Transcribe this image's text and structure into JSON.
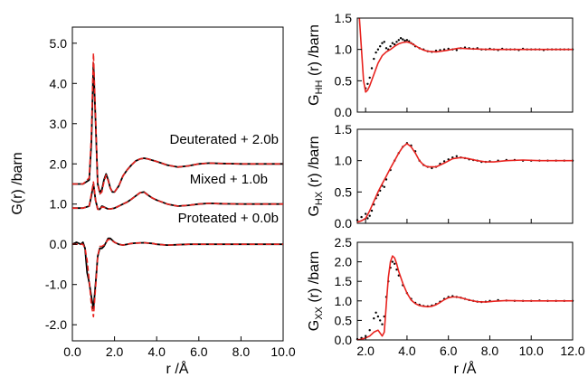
{
  "chart_data": [
    {
      "id": "left",
      "type": "line",
      "xlabel": "r /Å",
      "ylabel": "G(r) /barn",
      "xlim": [
        0,
        10
      ],
      "ylim": [
        -2.4,
        5.4
      ],
      "xticks": [
        "0.0",
        "2.0",
        "4.0",
        "6.0",
        "8.0",
        "10.0"
      ],
      "yticks": [
        "-2.0",
        "-1.0",
        "0.0",
        "1.0",
        "2.0",
        "3.0",
        "4.0",
        "5.0"
      ],
      "annotations": [
        {
          "text": "Deuterated + 2.0b",
          "x": 6.0,
          "y": 2.4
        },
        {
          "text": "Mixed + 1.0b",
          "x": 6.5,
          "y": 1.4
        },
        {
          "text": "Proteated + 0.0b",
          "x": 6.0,
          "y": 0.5
        }
      ],
      "colors": {
        "data": "#000000",
        "fit": "#e8231f"
      },
      "series": [
        {
          "group": "deuterated",
          "style": "data",
          "x": [
            0.0,
            0.5,
            0.8,
            0.9,
            1.0,
            1.1,
            1.2,
            1.3,
            1.4,
            1.5,
            1.6,
            1.7,
            1.8,
            1.9,
            2.0,
            2.2,
            2.4,
            2.6,
            2.8,
            3.0,
            3.2,
            3.4,
            3.6,
            3.8,
            4.0,
            4.5,
            5.0,
            5.5,
            6.0,
            6.5,
            7.0,
            8.0,
            9.0,
            10.0
          ],
          "y": [
            1.5,
            1.5,
            1.6,
            2.5,
            4.5,
            3.1,
            1.5,
            1.3,
            1.35,
            1.6,
            1.75,
            1.6,
            1.4,
            1.3,
            1.3,
            1.45,
            1.7,
            1.85,
            1.97,
            2.07,
            2.12,
            2.14,
            2.12,
            2.09,
            2.06,
            1.97,
            1.92,
            1.95,
            2.0,
            2.02,
            2.01,
            2.0,
            2.0,
            2.0
          ]
        },
        {
          "group": "deuterated",
          "style": "fit",
          "x": [
            0.0,
            0.5,
            0.8,
            0.9,
            1.0,
            1.1,
            1.2,
            1.3,
            1.4,
            1.5,
            1.6,
            1.7,
            1.8,
            1.9,
            2.0,
            2.2,
            2.4,
            2.6,
            2.8,
            3.0,
            3.2,
            3.4,
            3.6,
            3.8,
            4.0,
            4.5,
            5.0,
            5.5,
            6.0,
            6.5,
            7.0,
            8.0,
            9.0,
            10.0
          ],
          "y": [
            1.5,
            1.5,
            1.65,
            2.7,
            4.75,
            3.2,
            1.5,
            1.25,
            1.3,
            1.55,
            1.72,
            1.58,
            1.4,
            1.3,
            1.3,
            1.45,
            1.7,
            1.85,
            1.97,
            2.07,
            2.12,
            2.14,
            2.12,
            2.09,
            2.06,
            1.97,
            1.92,
            1.95,
            2.0,
            2.02,
            2.01,
            2.0,
            2.0,
            2.0
          ]
        },
        {
          "group": "mixed",
          "style": "data",
          "x": [
            0.0,
            0.5,
            0.8,
            0.9,
            1.0,
            1.1,
            1.2,
            1.3,
            1.4,
            1.5,
            1.6,
            1.7,
            1.8,
            2.0,
            2.2,
            2.4,
            2.6,
            2.8,
            3.0,
            3.2,
            3.4,
            3.6,
            3.8,
            4.0,
            4.5,
            5.0,
            5.5,
            6.0,
            6.5,
            7.0,
            8.0,
            9.0,
            10.0
          ],
          "y": [
            0.9,
            0.9,
            0.95,
            1.2,
            1.5,
            1.1,
            0.88,
            0.87,
            0.95,
            0.93,
            0.9,
            0.88,
            0.88,
            0.9,
            0.95,
            1.0,
            1.05,
            1.12,
            1.2,
            1.28,
            1.3,
            1.22,
            1.15,
            1.1,
            1.0,
            0.95,
            0.97,
            1.0,
            1.02,
            1.01,
            1.0,
            1.0,
            1.0
          ]
        },
        {
          "group": "mixed",
          "style": "fit",
          "x": [
            0.0,
            0.5,
            0.8,
            0.9,
            1.0,
            1.1,
            1.2,
            1.3,
            1.4,
            1.5,
            1.6,
            1.7,
            1.8,
            2.0,
            2.2,
            2.4,
            2.6,
            2.8,
            3.0,
            3.2,
            3.4,
            3.6,
            3.8,
            4.0,
            4.5,
            5.0,
            5.5,
            6.0,
            6.5,
            7.0,
            8.0,
            9.0,
            10.0
          ],
          "y": [
            0.9,
            0.9,
            0.95,
            1.25,
            1.55,
            1.1,
            0.87,
            0.86,
            0.93,
            0.92,
            0.9,
            0.88,
            0.88,
            0.9,
            0.95,
            1.0,
            1.05,
            1.12,
            1.2,
            1.28,
            1.3,
            1.22,
            1.15,
            1.1,
            1.0,
            0.95,
            0.97,
            1.0,
            1.02,
            1.01,
            1.0,
            1.0,
            1.0
          ]
        },
        {
          "group": "proteated",
          "style": "data",
          "x": [
            0.0,
            0.2,
            0.4,
            0.5,
            0.6,
            0.7,
            0.8,
            0.9,
            1.0,
            1.1,
            1.2,
            1.3,
            1.4,
            1.5,
            1.6,
            1.7,
            1.8,
            2.0,
            2.2,
            2.4,
            2.6,
            2.8,
            3.0,
            3.4,
            3.8,
            4.0,
            4.5,
            5.0,
            5.5,
            6.0,
            7.0,
            8.0,
            9.0,
            10.0
          ],
          "y": [
            0.0,
            0.05,
            0.0,
            0.05,
            -0.1,
            -0.7,
            -0.95,
            -1.3,
            -1.6,
            -1.0,
            -0.3,
            -0.1,
            -0.1,
            -0.05,
            0.05,
            0.15,
            0.15,
            0.05,
            0.0,
            -0.02,
            0.0,
            0.02,
            0.03,
            0.04,
            0.02,
            0.0,
            -0.02,
            -0.01,
            0.0,
            0.0,
            0.0,
            0.0,
            0.0,
            0.0
          ]
        },
        {
          "group": "proteated",
          "style": "fit",
          "x": [
            0.0,
            0.2,
            0.4,
            0.5,
            0.6,
            0.7,
            0.8,
            0.9,
            1.0,
            1.1,
            1.2,
            1.3,
            1.4,
            1.5,
            1.6,
            1.7,
            1.8,
            2.0,
            2.2,
            2.4,
            2.6,
            2.8,
            3.0,
            3.4,
            3.8,
            4.0,
            4.5,
            5.0,
            5.5,
            6.0,
            7.0,
            8.0,
            9.0,
            10.0
          ],
          "y": [
            0.0,
            0.0,
            0.0,
            0.0,
            -0.1,
            -0.4,
            -0.9,
            -1.5,
            -1.8,
            -1.1,
            -0.3,
            -0.05,
            -0.05,
            -0.02,
            0.05,
            0.12,
            0.12,
            0.05,
            0.0,
            -0.02,
            0.0,
            0.02,
            0.03,
            0.04,
            0.02,
            0.0,
            -0.02,
            -0.01,
            0.0,
            0.0,
            0.0,
            0.0,
            0.0,
            0.0
          ]
        }
      ]
    },
    {
      "id": "hh",
      "type": "line",
      "ylabel": "G_HH (r)  /barn",
      "xlim": [
        1.6,
        12.0
      ],
      "ylim": [
        0.0,
        1.5
      ],
      "yticks": [
        "0.0",
        "0.5",
        "1.0",
        "1.5"
      ],
      "series": [
        {
          "style": "data",
          "x": [
            2.0,
            2.1,
            2.2,
            2.3,
            2.4,
            2.5,
            2.6,
            2.7,
            2.8,
            2.9,
            3.0,
            3.1,
            3.2,
            3.3,
            3.4,
            3.5,
            3.6,
            3.7,
            3.8,
            3.9,
            4.0,
            4.1,
            4.2,
            4.3,
            4.4,
            4.6,
            4.8,
            5.0,
            5.2,
            5.4,
            5.6,
            5.8,
            6.0,
            6.2,
            6.4,
            6.6,
            6.8,
            7.0,
            7.2,
            7.4,
            7.6,
            7.8,
            8.0,
            8.2,
            8.4,
            8.6,
            8.8,
            9.0,
            9.2,
            9.4,
            9.6,
            9.8,
            10.0,
            10.2,
            10.4,
            10.6,
            10.8,
            11.0,
            11.2,
            11.4,
            11.6,
            11.8,
            12.0
          ],
          "y": [
            0.38,
            0.45,
            0.55,
            0.7,
            0.85,
            0.95,
            1.0,
            1.05,
            1.1,
            1.12,
            1.02,
            1.0,
            1.05,
            1.1,
            1.08,
            1.12,
            1.15,
            1.18,
            1.16,
            1.14,
            1.15,
            1.13,
            1.1,
            1.08,
            1.05,
            1.02,
            1.0,
            0.97,
            0.96,
            0.98,
            0.99,
            1.0,
            1.01,
            1.0,
            0.99,
            1.02,
            1.03,
            1.02,
            1.01,
            1.02,
            1.0,
            1.0,
            1.01,
            1.0,
            0.99,
            1.01,
            1.0,
            1.0,
            1.0,
            0.99,
            1.01,
            1.0,
            1.0,
            1.0,
            1.0,
            0.99,
            1.0,
            1.0,
            1.0,
            1.0,
            1.0,
            1.0,
            1.0
          ]
        },
        {
          "style": "fit",
          "x": [
            1.7,
            1.8,
            1.9,
            2.0,
            2.1,
            2.2,
            2.4,
            2.6,
            2.8,
            3.0,
            3.2,
            3.4,
            3.6,
            3.8,
            4.0,
            4.2,
            4.4,
            4.6,
            4.8,
            5.0,
            5.4,
            6.0,
            6.5,
            7.0,
            8.0,
            9.0,
            10.0,
            11.0,
            12.0
          ],
          "y": [
            1.5,
            1.0,
            0.5,
            0.32,
            0.35,
            0.42,
            0.6,
            0.78,
            0.9,
            0.96,
            1.0,
            1.05,
            1.09,
            1.11,
            1.12,
            1.1,
            1.06,
            1.02,
            0.99,
            0.97,
            0.96,
            0.99,
            1.02,
            1.01,
            1.0,
            1.0,
            1.0,
            1.0,
            1.0
          ]
        }
      ]
    },
    {
      "id": "hx",
      "type": "line",
      "ylabel": "G_HX (r)  /barn",
      "xlim": [
        1.6,
        12.0
      ],
      "ylim": [
        0.0,
        1.5
      ],
      "yticks": [
        "0.0",
        "0.5",
        "1.0",
        "1.5"
      ],
      "series": [
        {
          "style": "data",
          "x": [
            1.6,
            1.8,
            2.0,
            2.1,
            2.2,
            2.3,
            2.4,
            2.5,
            2.6,
            2.7,
            2.8,
            2.9,
            3.0,
            3.2,
            3.4,
            3.6,
            3.8,
            4.0,
            4.2,
            4.4,
            4.6,
            4.8,
            5.0,
            5.2,
            5.4,
            5.6,
            5.8,
            6.0,
            6.2,
            6.4,
            6.6,
            6.8,
            7.0,
            7.2,
            7.4,
            7.6,
            7.8,
            8.0,
            8.4,
            8.8,
            9.2,
            9.6,
            10.0,
            10.4,
            10.8,
            11.2,
            11.6,
            12.0
          ],
          "y": [
            0.05,
            0.1,
            0.15,
            0.08,
            0.12,
            0.2,
            0.3,
            0.4,
            0.45,
            0.52,
            0.6,
            0.58,
            0.7,
            0.85,
            1.0,
            1.12,
            1.22,
            1.28,
            1.24,
            1.15,
            1.0,
            0.93,
            0.9,
            0.88,
            0.9,
            0.95,
            0.99,
            1.02,
            1.05,
            1.07,
            1.05,
            1.04,
            1.02,
            1.01,
            1.0,
            0.98,
            0.98,
            0.99,
            1.0,
            1.01,
            1.01,
            1.0,
            1.0,
            1.0,
            1.0,
            1.0,
            1.0,
            1.0
          ]
        },
        {
          "style": "fit",
          "x": [
            1.6,
            1.8,
            2.0,
            2.2,
            2.4,
            2.6,
            2.8,
            3.0,
            3.2,
            3.4,
            3.6,
            3.8,
            4.0,
            4.2,
            4.4,
            4.6,
            4.8,
            5.0,
            5.4,
            5.8,
            6.2,
            6.6,
            7.0,
            7.4,
            7.8,
            8.2,
            8.8,
            9.6,
            10.4,
            11.2,
            12.0
          ],
          "y": [
            0.02,
            0.04,
            0.08,
            0.2,
            0.35,
            0.5,
            0.63,
            0.75,
            0.88,
            1.0,
            1.12,
            1.22,
            1.27,
            1.22,
            1.12,
            1.0,
            0.93,
            0.9,
            0.9,
            0.96,
            1.03,
            1.05,
            1.03,
            1.0,
            0.98,
            0.98,
            1.0,
            1.01,
            1.0,
            1.0,
            1.0
          ]
        }
      ]
    },
    {
      "id": "xx",
      "type": "line",
      "ylabel": "G_XX (r)  /barn",
      "xlabel": "r /Å",
      "xlim": [
        1.6,
        12.0
      ],
      "ylim": [
        0.0,
        2.5
      ],
      "xticks": [
        "2.0",
        "4.0",
        "6.0",
        "8.0",
        "10.0",
        "12.0"
      ],
      "yticks": [
        "0.0",
        "0.5",
        "1.0",
        "1.5",
        "2.0",
        "2.5"
      ],
      "series": [
        {
          "style": "data",
          "x": [
            1.6,
            1.8,
            2.0,
            2.2,
            2.4,
            2.5,
            2.6,
            2.7,
            2.8,
            2.9,
            3.0,
            3.1,
            3.2,
            3.3,
            3.4,
            3.5,
            3.6,
            3.8,
            4.0,
            4.2,
            4.4,
            4.6,
            4.8,
            5.0,
            5.2,
            5.4,
            5.6,
            5.8,
            6.0,
            6.2,
            6.4,
            6.6,
            6.8,
            7.0,
            7.2,
            7.4,
            7.6,
            7.8,
            8.0,
            8.4,
            8.8,
            9.2,
            9.6,
            10.0,
            10.4,
            10.8,
            11.2,
            11.6,
            12.0
          ],
          "y": [
            0.02,
            0.05,
            0.1,
            0.25,
            0.55,
            0.7,
            0.6,
            0.5,
            0.4,
            0.6,
            1.1,
            1.5,
            1.85,
            2.0,
            1.95,
            1.8,
            1.65,
            1.4,
            1.2,
            1.05,
            0.95,
            0.9,
            0.87,
            0.86,
            0.88,
            0.92,
            0.98,
            1.05,
            1.1,
            1.12,
            1.1,
            1.08,
            1.05,
            1.02,
            1.0,
            0.98,
            0.97,
            0.98,
            1.0,
            1.02,
            1.01,
            1.0,
            1.0,
            1.0,
            1.01,
            1.0,
            1.0,
            1.0,
            1.0
          ]
        },
        {
          "style": "fit",
          "x": [
            1.6,
            1.8,
            2.0,
            2.2,
            2.4,
            2.6,
            2.8,
            2.9,
            3.0,
            3.1,
            3.2,
            3.3,
            3.4,
            3.5,
            3.6,
            3.8,
            4.0,
            4.2,
            4.4,
            4.6,
            4.8,
            5.0,
            5.2,
            5.4,
            5.6,
            5.8,
            6.0,
            6.2,
            6.4,
            6.6,
            6.8,
            7.0,
            7.4,
            7.8,
            8.2,
            8.8,
            9.6,
            10.4,
            11.2,
            12.0
          ],
          "y": [
            0.0,
            0.02,
            0.05,
            0.1,
            0.2,
            0.25,
            0.1,
            0.2,
            0.9,
            1.6,
            2.0,
            2.15,
            2.1,
            1.95,
            1.75,
            1.45,
            1.2,
            1.02,
            0.93,
            0.88,
            0.86,
            0.85,
            0.86,
            0.9,
            0.96,
            1.03,
            1.08,
            1.1,
            1.1,
            1.08,
            1.05,
            1.02,
            0.98,
            0.97,
            0.99,
            1.01,
            1.0,
            1.0,
            1.0,
            1.0
          ]
        }
      ]
    }
  ]
}
